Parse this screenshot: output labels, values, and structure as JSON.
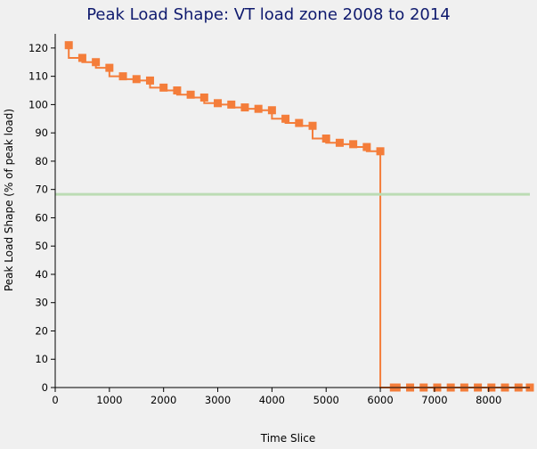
{
  "chart_data": {
    "type": "line",
    "title": "Peak Load Shape: VT load zone 2008 to 2014",
    "xlabel": "Time Slice",
    "ylabel": "Peak Load Shape (% of peak load)",
    "xlim": [
      0,
      8760
    ],
    "ylim": [
      0,
      125
    ],
    "x_ticks": [
      0,
      1000,
      2000,
      3000,
      4000,
      5000,
      6000,
      7000,
      8000
    ],
    "y_ticks": [
      0,
      10,
      20,
      30,
      40,
      50,
      60,
      70,
      80,
      90,
      100,
      110,
      120
    ],
    "grid": false,
    "legend": "none",
    "series": [
      {
        "color": "#f47d3a",
        "style": "step",
        "marker": "square",
        "x": [
          250,
          500,
          750,
          1000,
          1250,
          1500,
          1750,
          2000,
          2250,
          2500,
          2750,
          3000,
          3250,
          3500,
          3750,
          4000,
          4250,
          4500,
          4750,
          5000,
          5250,
          5500,
          5750,
          6000,
          6250,
          6300,
          6550,
          6800,
          7050,
          7300,
          7550,
          7800,
          8050,
          8300,
          8550,
          8760
        ],
        "values": [
          121,
          116.5,
          115,
          113,
          110,
          109,
          108.5,
          106,
          105,
          103.5,
          102.5,
          100.5,
          100,
          99,
          98.5,
          98,
          95,
          93.5,
          92.5,
          88,
          86.5,
          86,
          85,
          83.5,
          0,
          0,
          0,
          0,
          0,
          0,
          0,
          0,
          0,
          0,
          0,
          0
        ]
      },
      {
        "color": "#bcdcb4",
        "style": "line",
        "marker": "none",
        "x": [
          0,
          8760
        ],
        "values": [
          68.3,
          68.3
        ]
      }
    ]
  }
}
